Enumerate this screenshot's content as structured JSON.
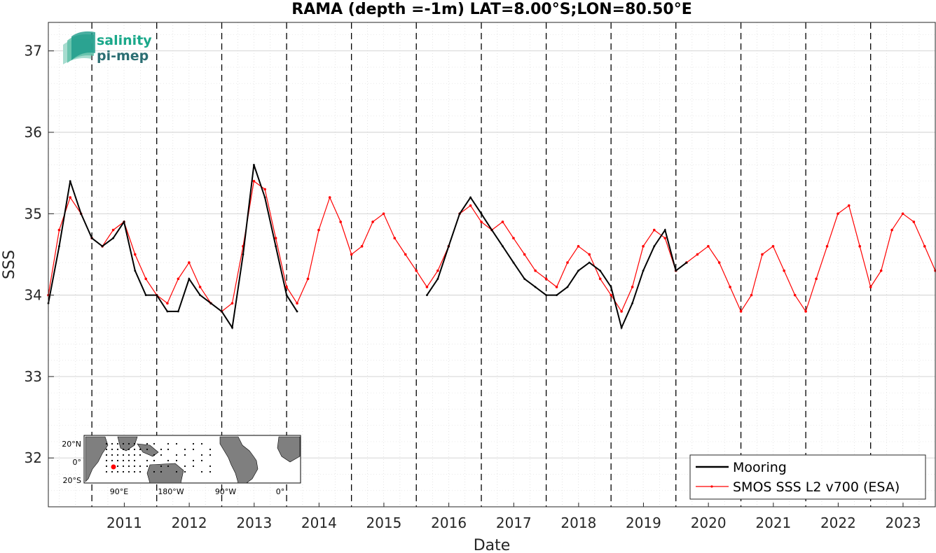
{
  "chart_data": {
    "type": "line",
    "title": "RAMA (depth =-1m) LAT=8.00°S;LON=80.50°E",
    "xlabel": "Date",
    "ylabel": "SSS",
    "xlim": [
      "2010-05-01",
      "2023-12-31"
    ],
    "ylim": [
      31.4,
      37.35
    ],
    "x_ticks": [
      "2011",
      "2012",
      "2013",
      "2014",
      "2015",
      "2016",
      "2017",
      "2018",
      "2019",
      "2020",
      "2021",
      "2022",
      "2023"
    ],
    "y_ticks": [
      "32",
      "33",
      "34",
      "35",
      "36",
      "37"
    ],
    "grid": true,
    "year_boundaries": [
      "2011-01-01",
      "2012-01-01",
      "2013-01-01",
      "2014-01-01",
      "2015-01-01",
      "2016-01-01",
      "2017-01-01",
      "2018-01-01",
      "2019-01-01",
      "2020-01-01",
      "2021-01-01",
      "2022-01-01",
      "2023-01-01"
    ],
    "legend_position": "bottom-right",
    "series": [
      {
        "name": "Mooring",
        "color": "#000000",
        "x": [
          "2010-05-01",
          "2010-07-01",
          "2010-09-01",
          "2010-11-01",
          "2011-01-01",
          "2011-03-01",
          "2011-05-01",
          "2011-07-01",
          "2011-09-01",
          "2011-11-01",
          "2012-01-01",
          "2012-03-01",
          "2012-05-01",
          "2012-07-01",
          "2012-09-01",
          "2012-11-01",
          "2013-01-01",
          "2013-03-01",
          "2013-05-01",
          "2013-07-01",
          "2013-09-01",
          "2013-11-01",
          "2014-01-01",
          "2014-03-01",
          "2016-03-01",
          "2016-05-01",
          "2016-07-01",
          "2016-09-01",
          "2016-11-01",
          "2017-01-01",
          "2017-03-01",
          "2017-05-01",
          "2017-07-01",
          "2017-09-01",
          "2017-11-01",
          "2018-01-01",
          "2018-03-01",
          "2018-05-01",
          "2018-07-01",
          "2018-09-01",
          "2018-11-01",
          "2019-01-01",
          "2019-03-01",
          "2019-05-01",
          "2019-07-01",
          "2019-09-01",
          "2019-11-01",
          "2020-01-01",
          "2020-03-01"
        ],
        "y": [
          33.9,
          34.6,
          35.4,
          35.0,
          34.7,
          34.6,
          34.7,
          34.9,
          34.3,
          34.0,
          34.0,
          33.8,
          33.8,
          34.2,
          34.0,
          33.9,
          33.8,
          33.6,
          34.5,
          35.6,
          35.2,
          34.6,
          34.0,
          33.8,
          34.0,
          34.2,
          34.6,
          35.0,
          35.2,
          35.0,
          34.8,
          34.6,
          34.4,
          34.2,
          34.1,
          34.0,
          34.0,
          34.1,
          34.3,
          34.4,
          34.3,
          34.1,
          33.6,
          33.9,
          34.3,
          34.6,
          34.8,
          34.3,
          34.4
        ]
      },
      {
        "name": "SMOS SSS L2 v700 (ESA)",
        "color": "#ff0000",
        "x": [
          "2010-05-01",
          "2010-07-01",
          "2010-09-01",
          "2010-11-01",
          "2011-01-01",
          "2011-03-01",
          "2011-05-01",
          "2011-07-01",
          "2011-09-01",
          "2011-11-01",
          "2012-01-01",
          "2012-03-01",
          "2012-05-01",
          "2012-07-01",
          "2012-09-01",
          "2012-11-01",
          "2013-01-01",
          "2013-03-01",
          "2013-05-01",
          "2013-07-01",
          "2013-09-01",
          "2013-11-01",
          "2014-01-01",
          "2014-03-01",
          "2014-05-01",
          "2014-07-01",
          "2014-09-01",
          "2014-11-01",
          "2015-01-01",
          "2015-03-01",
          "2015-05-01",
          "2015-07-01",
          "2015-09-01",
          "2015-11-01",
          "2016-01-01",
          "2016-03-01",
          "2016-05-01",
          "2016-07-01",
          "2016-09-01",
          "2016-11-01",
          "2017-01-01",
          "2017-03-01",
          "2017-05-01",
          "2017-07-01",
          "2017-09-01",
          "2017-11-01",
          "2018-01-01",
          "2018-03-01",
          "2018-05-01",
          "2018-07-01",
          "2018-09-01",
          "2018-11-01",
          "2019-01-01",
          "2019-03-01",
          "2019-05-01",
          "2019-07-01",
          "2019-09-01",
          "2019-11-01",
          "2020-01-01",
          "2020-03-01",
          "2020-05-01",
          "2020-07-01",
          "2020-09-01",
          "2020-11-01",
          "2021-01-01",
          "2021-03-01",
          "2021-05-01",
          "2021-07-01",
          "2021-09-01",
          "2021-11-01",
          "2022-01-01",
          "2022-03-01",
          "2022-05-01",
          "2022-07-01",
          "2022-09-01",
          "2022-11-01",
          "2023-01-01",
          "2023-03-01",
          "2023-05-01",
          "2023-07-01",
          "2023-09-01",
          "2023-11-01",
          "2023-12-31"
        ],
        "y": [
          34.0,
          34.8,
          35.2,
          35.0,
          34.7,
          34.6,
          34.8,
          34.9,
          34.5,
          34.2,
          34.0,
          33.9,
          34.2,
          34.4,
          34.1,
          33.9,
          33.8,
          33.9,
          34.6,
          35.4,
          35.3,
          34.7,
          34.1,
          33.9,
          34.2,
          34.8,
          35.2,
          34.9,
          34.5,
          34.6,
          34.9,
          35.0,
          34.7,
          34.5,
          34.3,
          34.1,
          34.3,
          34.6,
          35.0,
          35.1,
          34.9,
          34.8,
          34.9,
          34.7,
          34.5,
          34.3,
          34.2,
          34.1,
          34.4,
          34.6,
          34.5,
          34.2,
          34.0,
          33.8,
          34.1,
          34.6,
          34.8,
          34.7,
          34.3,
          34.4,
          34.5,
          34.6,
          34.4,
          34.1,
          33.8,
          34.0,
          34.5,
          34.6,
          34.3,
          34.0,
          33.8,
          34.2,
          34.6,
          35.0,
          35.1,
          34.6,
          34.1,
          34.3,
          34.8,
          35.0,
          34.9,
          34.6,
          34.3
        ]
      }
    ]
  },
  "logo": {
    "line1": "salinity",
    "line2": "pi-mep"
  },
  "inset_map": {
    "lat_labels": [
      "20°N",
      "0°",
      "20°S"
    ],
    "lon_labels": [
      "90°E",
      "180°W",
      "90°W",
      "0°"
    ]
  },
  "legend": {
    "entries": [
      "Mooring",
      "SMOS SSS L2 v700 (ESA)"
    ]
  }
}
